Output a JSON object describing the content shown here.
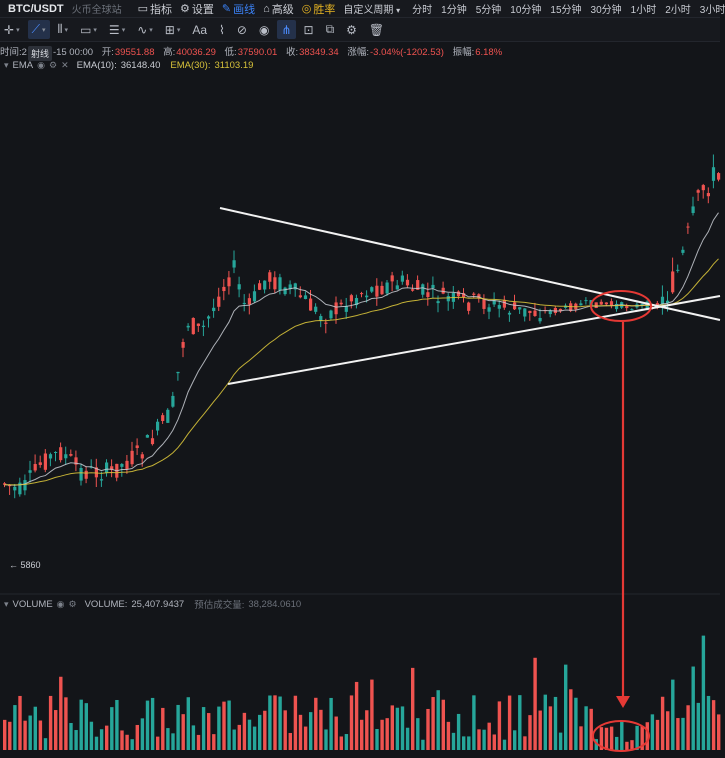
{
  "header": {
    "pair": "BTC/USDT",
    "exchange": "火币全球站",
    "menu": [
      {
        "label": "指标",
        "icon": "indicator-icon",
        "active": false
      },
      {
        "label": "设置",
        "icon": "gear-icon",
        "active": false
      },
      {
        "label": "画线",
        "icon": "draw-line-icon",
        "active": true
      },
      {
        "label": "高级",
        "icon": "advanced-icon",
        "active": false
      },
      {
        "label": "胜率",
        "icon": "win-rate-icon",
        "active": false
      }
    ],
    "period_select": "自定义周期",
    "periods": [
      "分时",
      "1分钟",
      "5分钟",
      "10分钟",
      "15分钟",
      "30分钟",
      "1小时",
      "2小时",
      "3小时"
    ]
  },
  "toolbar": {
    "tools": [
      "crosshair-icon",
      "trend-line-icon",
      "parallel-channel-icon",
      "rectangle-icon",
      "fib-icon",
      "wave-icon",
      "grid-icon",
      "text-icon",
      "brush-icon",
      "link-icon",
      "eye-icon",
      "magnet-icon",
      "lock-icon",
      "copy-icon",
      "settings-small-icon",
      "trash-icon"
    ]
  },
  "ohlc": {
    "time_label": "时间:2",
    "time_value": "-15 00:00",
    "tooltip": "射线",
    "open_label": "开:",
    "open": "39551.88",
    "high_label": "高:",
    "high": "40036.29",
    "low_label": "低:",
    "low": "37590.01",
    "close_label": "收:",
    "close": "38349.34",
    "change_label": "涨幅:",
    "change": "-3.04%(-1202.53)",
    "amplitude_label": "振幅:",
    "amplitude": "6.18%"
  },
  "ema": {
    "name": "EMA",
    "ema10_label": "EMA(10):",
    "ema10": "36148.40",
    "ema30_label": "EMA(30):",
    "ema30": "31103.19"
  },
  "price_marker": "← 5860",
  "volume": {
    "name": "VOLUME",
    "label": "VOLUME:",
    "value": "25,407.9437",
    "est_label": "预估成交量:",
    "est_value": "38,284.0610"
  },
  "colors": {
    "up": "#26a69a",
    "down": "#ef5350",
    "ema10": "#c9ccd3",
    "ema30": "#d7c23a",
    "trendline": "#f2f2f2",
    "annotation": "#e53935"
  }
}
